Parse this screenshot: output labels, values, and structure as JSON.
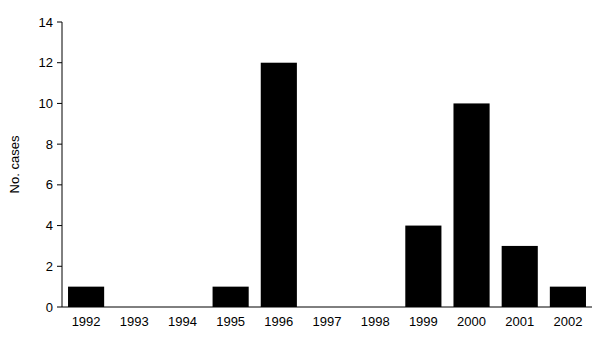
{
  "chart_data": {
    "type": "bar",
    "categories": [
      "1992",
      "1993",
      "1994",
      "1995",
      "1996",
      "1997",
      "1998",
      "1999",
      "2000",
      "2001",
      "2002"
    ],
    "values": [
      1,
      0,
      0,
      1,
      12,
      0,
      0,
      4,
      10,
      3,
      1
    ],
    "color": "#000000",
    "y_label": "No. cases",
    "ylim": [
      0,
      14
    ],
    "yticks": [
      0,
      2,
      4,
      6,
      8,
      10,
      12,
      14
    ],
    "grid": false
  }
}
